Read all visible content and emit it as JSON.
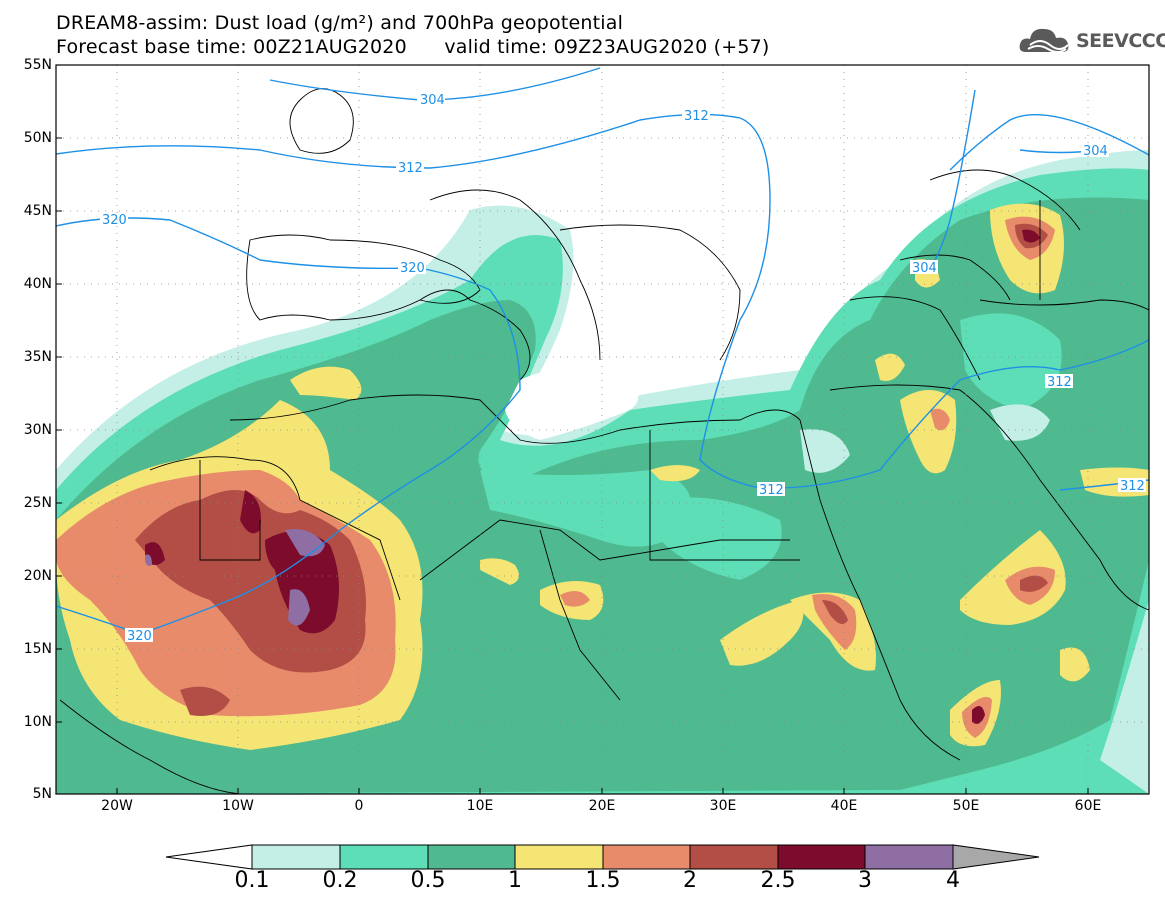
{
  "header": {
    "title_line1": "DREAM8-assim: Dust load (g/m²) and 700hPa geopotential",
    "title_line2": "Forecast base time: 00Z21AUG2020      valid time: 09Z23AUG2020 (+57)",
    "logo_text": "SEEVCCC"
  },
  "map": {
    "lat_labels": [
      "55N",
      "50N",
      "45N",
      "40N",
      "35N",
      "30N",
      "25N",
      "20N",
      "15N",
      "10N",
      "5N"
    ],
    "lon_labels": [
      "20W",
      "10W",
      "0",
      "10E",
      "20E",
      "30E",
      "40E",
      "50E",
      "60E"
    ],
    "contour_labels": [
      "304",
      "312",
      "312",
      "320",
      "320",
      "320",
      "312",
      "312",
      "312",
      "304",
      "304",
      "312"
    ],
    "colors": {
      "very_light": "#c3efe6",
      "light": "#5ddeb6",
      "medium": "#4fb98f",
      "yellow": "#f5e574",
      "orange": "#e78b6b",
      "red_brown": "#b24e45",
      "dark_red": "#7d0b2c",
      "purple": "#8e6ea3",
      "grey": "#a8a8a8",
      "contour": "#1e90e6"
    }
  },
  "colorbar": {
    "labels": [
      "0.1",
      "0.2",
      "0.5",
      "1",
      "1.5",
      "2",
      "2.5",
      "3",
      "4"
    ],
    "colors": [
      "#c3efe6",
      "#5ddeb6",
      "#4fb98f",
      "#f5e574",
      "#e78b6b",
      "#b24e45",
      "#7d0b2c",
      "#8e6ea3"
    ]
  }
}
